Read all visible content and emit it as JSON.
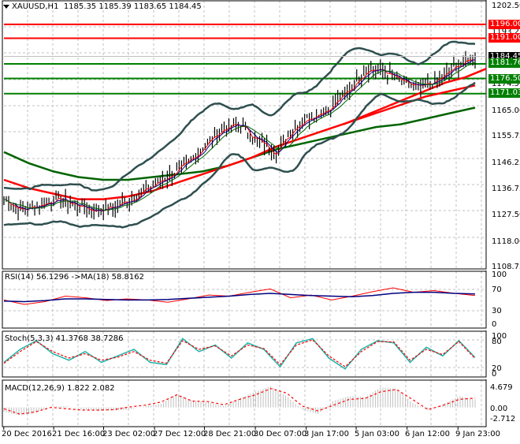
{
  "header": {
    "symbol_label": "XAUUSD,H1",
    "ohlc": "1185.35 1185.39 1183.65 1184.45",
    "dropdown_icon": "triangle-down-icon"
  },
  "colors": {
    "resistance": "#ff0000",
    "support": "#008000",
    "bars": "#000000",
    "bollinger": "#2f4f4f",
    "ma_fast_red": "#ff0000",
    "ma_blue": "#000080",
    "ma_green": "#006400",
    "current_price_bg": "#000000",
    "grid": "#c0c0c0",
    "rsi_line": "#ff0000",
    "rsi_ma": "#000080",
    "stoch_main": "#20b2aa",
    "stoch_signal": "#ff0000",
    "macd_hist": "#c0c0c0",
    "macd_signal": "#ff0000"
  },
  "price_axis": {
    "ticks": [
      "1202.50",
      "1193.25",
      "1174.50",
      "1165.00",
      "1155.75",
      "1146.25",
      "1136.75",
      "1127.50",
      "1118.00",
      "1108.75"
    ],
    "tags": [
      {
        "label": "1196.00",
        "kind": "resistance"
      },
      {
        "label": "1191.00",
        "kind": "resistance"
      },
      {
        "label": "1184.45",
        "kind": "current"
      },
      {
        "label": "1181.76",
        "kind": "support"
      },
      {
        "label": "1176.50",
        "kind": "support"
      },
      {
        "label": "1171.03",
        "kind": "support"
      }
    ]
  },
  "rsi_panel": {
    "label": "RSI(14) 56.1296  ->MA(18) 58.8162",
    "ticks": [
      "100",
      "70",
      "30",
      "0"
    ]
  },
  "stoch_panel": {
    "label": "Stoch(5,3,3) 41.3768 38.7286",
    "ticks": [
      "100",
      "80",
      "20",
      "0"
    ]
  },
  "macd_panel": {
    "label": "MACD(12,26,9) 1.822 2.082",
    "ticks": [
      "4.679",
      "0.00",
      "-2.712"
    ]
  },
  "time_axis": {
    "labels": [
      "20 Dec 2016",
      "21 Dec 16:00",
      "23 Dec 02:00",
      "27 Dec 12:00",
      "28 Dec 21:00",
      "30 Dec 07:00",
      "3 Jan 17:00",
      "5 Jan 03:00",
      "6 Jan 12:00",
      "9 Jan 23:00"
    ]
  },
  "chart_data": [
    {
      "type": "line",
      "title": "XAUUSD,H1 1185.35 1185.39 1183.65 1184.45",
      "xlabel": "",
      "ylabel": "",
      "ylim": [
        1108.75,
        1202.5
      ],
      "categories": [
        "20 Dec 2016",
        "21 Dec 16:00",
        "23 Dec 02:00",
        "27 Dec 12:00",
        "28 Dec 21:00",
        "30 Dec 07:00",
        "3 Jan 17:00",
        "5 Jan 03:00",
        "6 Jan 12:00",
        "9 Jan 23:00"
      ],
      "horizontal_levels": [
        {
          "name": "resistance",
          "value": 1196.0
        },
        {
          "name": "resistance",
          "value": 1191.0
        },
        {
          "name": "support",
          "value": 1181.76
        },
        {
          "name": "support",
          "value": 1176.5
        },
        {
          "name": "support",
          "value": 1171.03
        }
      ],
      "current_price": 1184.45,
      "series": [
        {
          "name": "price_close_approx",
          "values": [
            1133,
            1129,
            1131,
            1133,
            1131,
            1129,
            1130,
            1133,
            1137,
            1141,
            1145,
            1152,
            1158,
            1160,
            1154,
            1150,
            1159,
            1163,
            1166,
            1172,
            1180,
            1179,
            1175,
            1173,
            1176,
            1181,
            1184
          ]
        },
        {
          "name": "ma_slow_green",
          "values": [
            1150,
            1146,
            1143,
            1141,
            1140,
            1140,
            1141,
            1142,
            1143,
            1145,
            1148,
            1151,
            1153,
            1155,
            1157,
            1159,
            1160,
            1162,
            1164,
            1166
          ]
        },
        {
          "name": "ma_mid_red",
          "values": [
            1140,
            1137,
            1135,
            1133,
            1133,
            1134,
            1136,
            1139,
            1142,
            1145,
            1148,
            1152,
            1155,
            1158,
            1161,
            1164,
            1167,
            1170,
            1172,
            1174
          ]
        },
        {
          "name": "ma_upper_red",
          "values": [
            1160,
            1163,
            1166,
            1169,
            1172,
            1175,
            1177,
            1180
          ]
        }
      ]
    },
    {
      "type": "line",
      "title": "RSI(14) 56.1296 ->MA(18) 58.8162",
      "ylim": [
        0,
        100
      ],
      "levels": [
        70,
        30
      ],
      "series": [
        {
          "name": "RSI(14)",
          "values": [
            48,
            40,
            45,
            55,
            52,
            47,
            50,
            48,
            44,
            50,
            57,
            55,
            62,
            68,
            52,
            57,
            48,
            55,
            63,
            70,
            62,
            65,
            60,
            56
          ]
        },
        {
          "name": "MA(18)",
          "values": [
            46,
            45,
            47,
            50,
            50,
            49,
            48,
            48,
            49,
            51,
            53,
            55,
            58,
            60,
            58,
            56,
            55,
            54,
            56,
            60,
            62,
            62,
            60,
            59
          ]
        }
      ]
    },
    {
      "type": "line",
      "title": "Stoch(5,3,3) 41.3768 38.7286",
      "ylim": [
        0,
        100
      ],
      "levels": [
        80,
        20
      ],
      "series": [
        {
          "name": "main",
          "values": [
            30,
            60,
            80,
            50,
            35,
            55,
            30,
            45,
            60,
            30,
            25,
            85,
            55,
            70,
            40,
            75,
            60,
            20,
            75,
            85,
            40,
            15,
            60,
            80,
            75,
            30,
            65,
            45,
            80,
            41
          ]
        },
        {
          "name": "signal",
          "values": [
            28,
            55,
            78,
            55,
            40,
            50,
            35,
            42,
            55,
            35,
            28,
            80,
            60,
            68,
            45,
            70,
            62,
            25,
            70,
            82,
            45,
            20,
            55,
            78,
            77,
            35,
            60,
            48,
            78,
            39
          ]
        }
      ]
    },
    {
      "type": "bar",
      "title": "MACD(12,26,9) 1.822 2.082",
      "ylim": [
        -2.712,
        4.679
      ],
      "series": [
        {
          "name": "MACD histogram",
          "values": [
            -1.0,
            -1.8,
            -1.2,
            0.2,
            0.3,
            -0.5,
            -0.8,
            -0.7,
            -0.5,
            0.3,
            0.8,
            3.0,
            1.5,
            1.2,
            0.3,
            2.0,
            3.5,
            4.7,
            2.5,
            -0.5,
            -1.5,
            1.5,
            2.5,
            2.3,
            4.5,
            4.2,
            1.0,
            -0.6,
            0.8,
            2.5,
            1.8
          ]
        },
        {
          "name": "signal",
          "values": [
            -0.3,
            -1.5,
            -1.0,
            0.0,
            -0.3,
            -0.6,
            -0.6,
            -0.5,
            0.1,
            0.5,
            1.2,
            2.8,
            1.4,
            1.3,
            0.6,
            1.8,
            2.8,
            4.2,
            3.2,
            0.3,
            -0.8,
            0.5,
            1.8,
            2.0,
            3.5,
            4.0,
            1.8,
            -0.5,
            0.5,
            1.8,
            2.1
          ]
        }
      ]
    }
  ]
}
